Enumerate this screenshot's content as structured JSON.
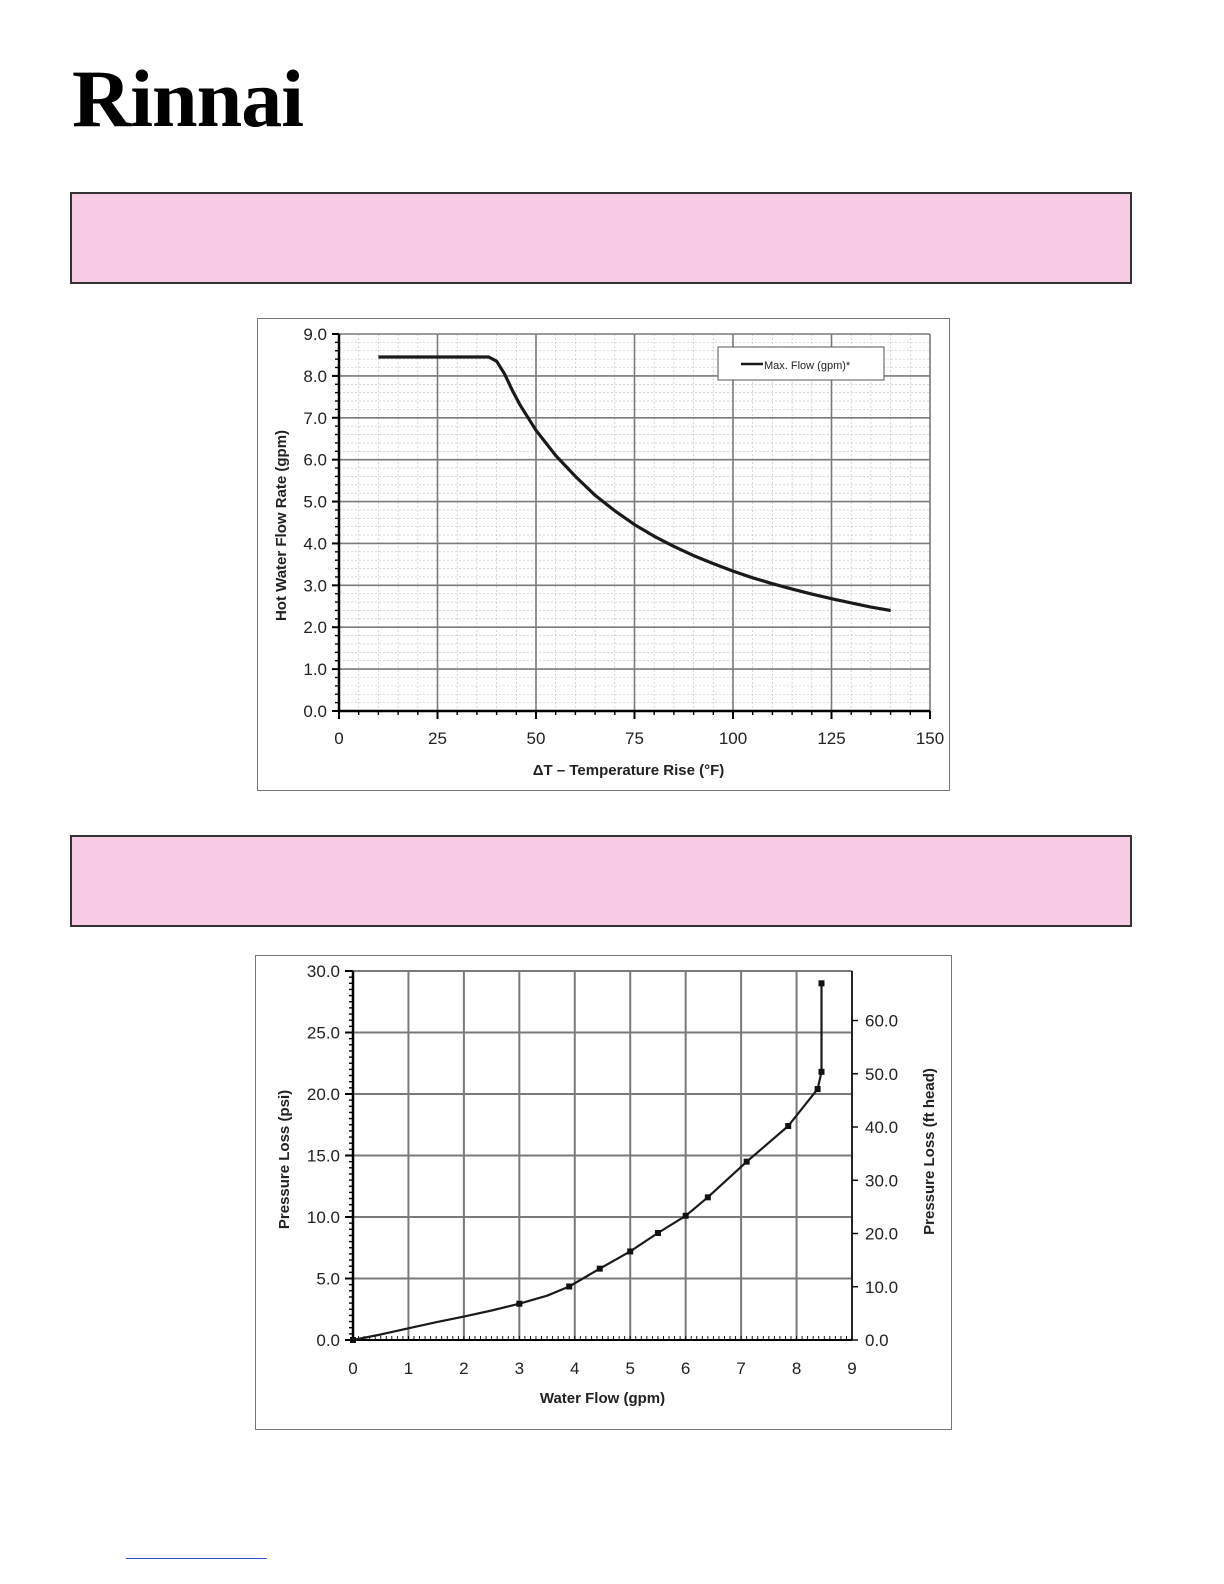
{
  "logo": {
    "text": "Rinnai"
  },
  "colors": {
    "header_box_fill": "#f8cbe5",
    "line": "#1a1a1a",
    "grid_major": "#7a7a7a",
    "grid_minor": "#bdbdbd"
  },
  "chart_data": [
    {
      "type": "line",
      "title": "",
      "xlabel": "ΔT – Temperature Rise (°F)",
      "ylabel": "Hot Water Flow Rate (gpm)",
      "xlim": [
        0,
        150
      ],
      "ylim": [
        0,
        9
      ],
      "x_ticks": [
        "0",
        "25",
        "50",
        "75",
        "100",
        "125",
        "150"
      ],
      "y_ticks": [
        "0.0",
        "1.0",
        "2.0",
        "3.0",
        "4.0",
        "5.0",
        "6.0",
        "7.0",
        "8.0",
        "9.0"
      ],
      "grid": true,
      "legend": "top-right",
      "series": [
        {
          "name": "Max. Flow (gpm)*",
          "x": [
            10,
            20,
            30,
            38,
            40,
            42,
            44,
            46,
            50,
            55,
            60,
            65,
            70,
            75,
            80,
            85,
            90,
            95,
            100,
            105,
            110,
            115,
            120,
            125,
            130,
            135,
            140
          ],
          "y": [
            8.45,
            8.45,
            8.45,
            8.45,
            8.35,
            8.05,
            7.65,
            7.3,
            6.7,
            6.1,
            5.6,
            5.15,
            4.78,
            4.45,
            4.17,
            3.93,
            3.71,
            3.52,
            3.34,
            3.18,
            3.04,
            2.91,
            2.79,
            2.68,
            2.58,
            2.48,
            2.4
          ]
        }
      ]
    },
    {
      "type": "line",
      "title": "",
      "xlabel": "Water Flow (gpm)",
      "ylabel": "Pressure Loss (psi)",
      "y2label": "Pressure Loss (ft head)",
      "xlim": [
        0,
        9
      ],
      "ylim": [
        0,
        30
      ],
      "y2lim": [
        0,
        69.3
      ],
      "x_ticks": [
        "0",
        "1",
        "2",
        "3",
        "4",
        "5",
        "6",
        "7",
        "8",
        "9"
      ],
      "y_ticks": [
        "0.0",
        "5.0",
        "10.0",
        "15.0",
        "20.0",
        "25.0",
        "30.0"
      ],
      "y2_ticks": [
        "0.0",
        "10.0",
        "20.0",
        "30.0",
        "40.0",
        "50.0",
        "60.0"
      ],
      "grid": true,
      "series": [
        {
          "x": [
            0,
            0.5,
            1,
            1.5,
            2,
            2.5,
            3,
            3.5,
            3.9,
            4.45,
            5.0,
            5.5,
            6.0,
            6.4,
            7.1,
            7.85,
            8.38,
            8.45,
            8.45
          ],
          "y": [
            0,
            0.45,
            0.95,
            1.45,
            1.9,
            2.4,
            2.95,
            3.6,
            4.35,
            5.8,
            7.2,
            8.7,
            10.1,
            11.6,
            14.5,
            17.4,
            20.4,
            21.8,
            29.0
          ],
          "markers": [
            0,
            3,
            3.9,
            4.45,
            5.0,
            5.5,
            6.0,
            6.4,
            7.1,
            7.85,
            8.38,
            8.45,
            8.45
          ]
        }
      ]
    }
  ]
}
